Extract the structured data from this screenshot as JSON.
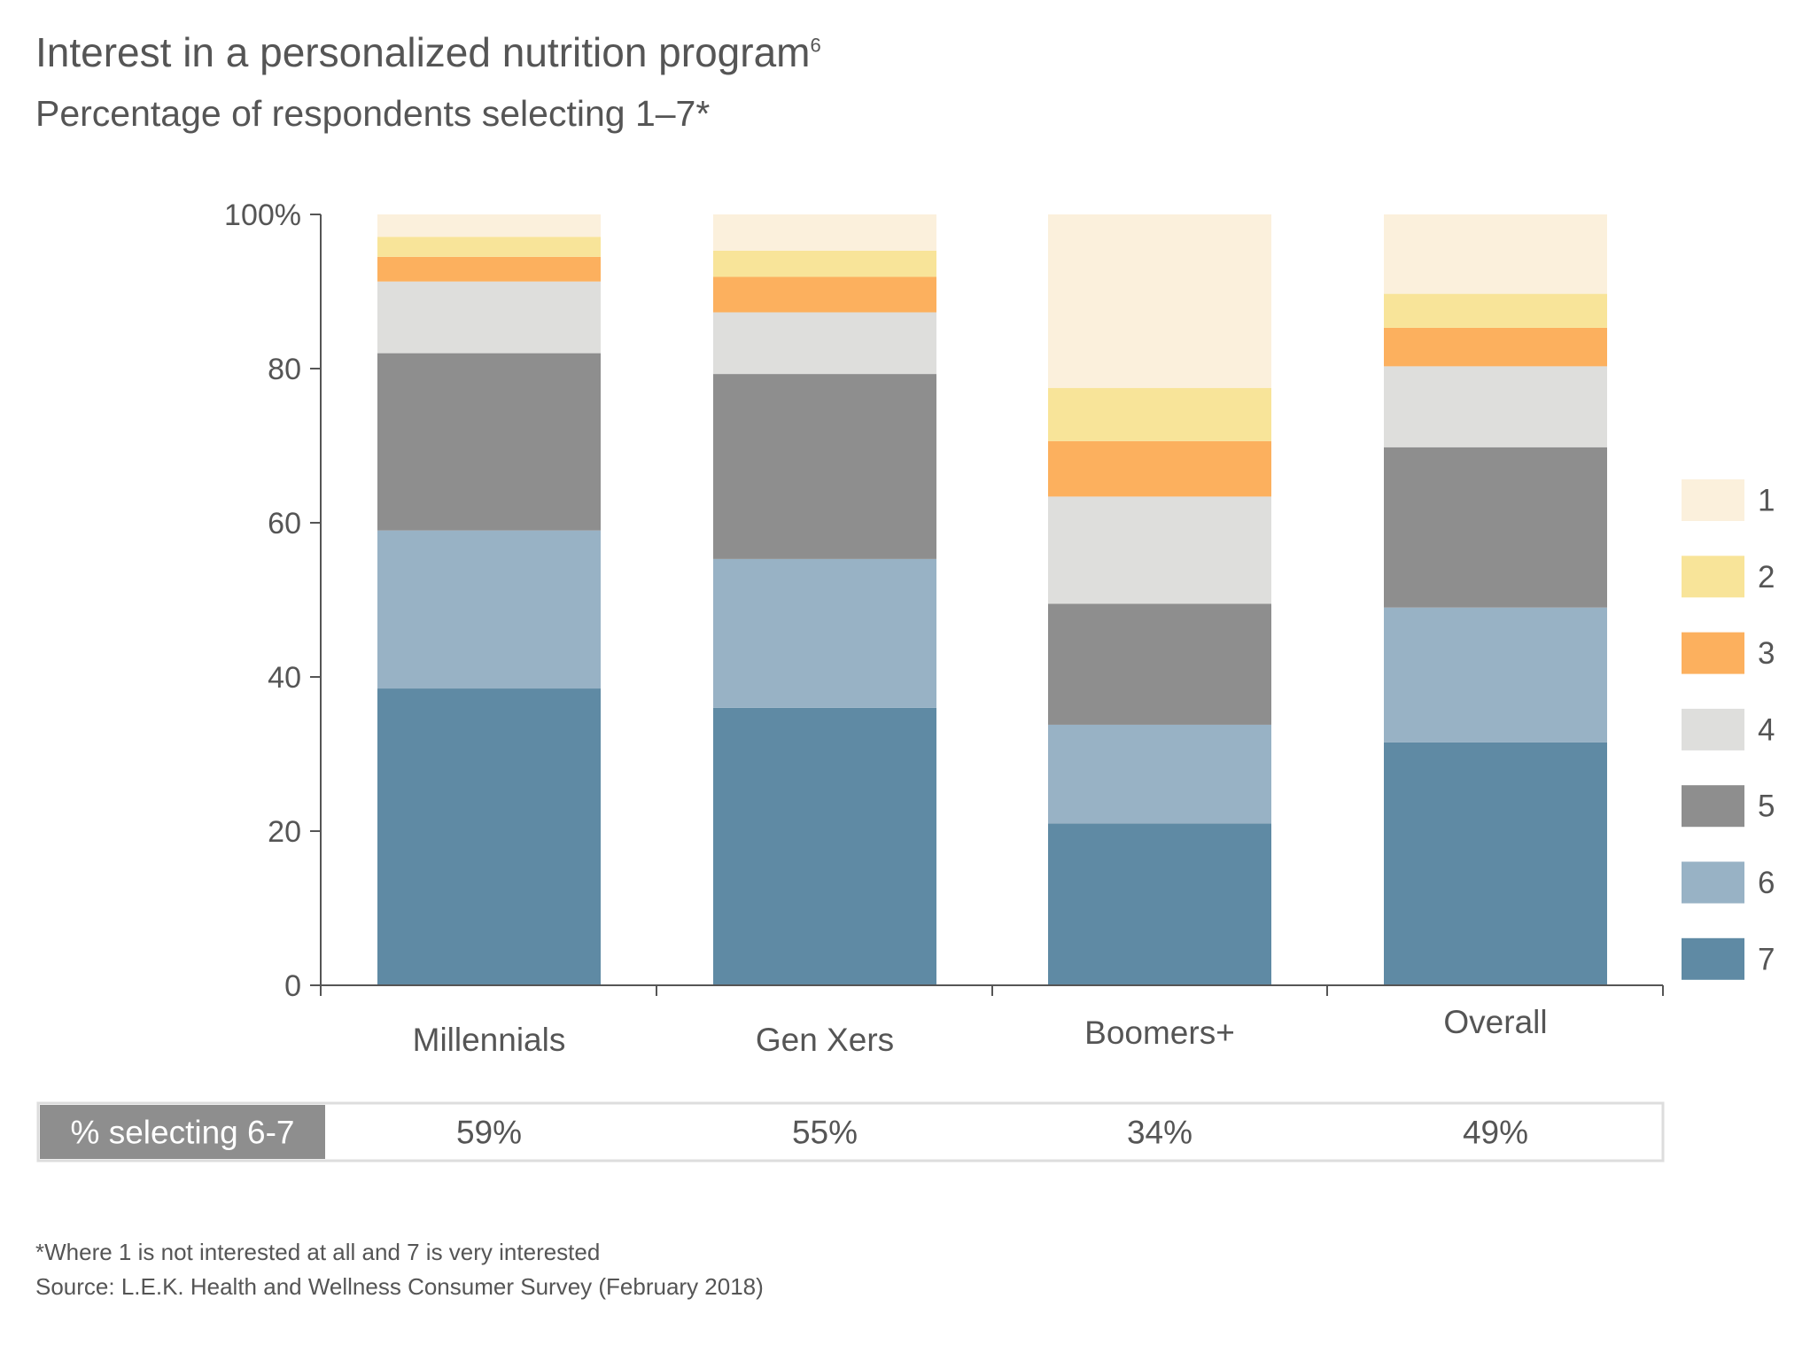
{
  "title": "Interest in a personalized nutrition program",
  "title_superscript": "6",
  "subtitle": "Percentage of respondents selecting 1–7*",
  "footnote": "*Where 1 is not interested at all and 7 is very interested",
  "source": "Source: L.E.K. Health and Wellness Consumer Survey (February 2018)",
  "chart_data": {
    "type": "bar",
    "stacked": true,
    "categories": [
      "Millennials",
      "Gen Xers",
      "Boomers+",
      "Overall"
    ],
    "y_tick_labels": [
      "0",
      "20",
      "40",
      "60",
      "80",
      "100%"
    ],
    "ylim": [
      0,
      100
    ],
    "grid": false,
    "legend_position": "right",
    "series": [
      {
        "name": "7",
        "color": "#5f8aa4",
        "values": [
          38.5,
          36.0,
          21.0,
          31.5
        ]
      },
      {
        "name": "6",
        "color": "#98b2c5",
        "values": [
          20.5,
          19.3,
          12.8,
          17.5
        ]
      },
      {
        "name": "5",
        "color": "#8e8e8e",
        "values": [
          23.0,
          24.0,
          15.7,
          20.8
        ]
      },
      {
        "name": "4",
        "color": "#dededc",
        "values": [
          9.3,
          8.0,
          13.9,
          10.5
        ]
      },
      {
        "name": "3",
        "color": "#fcb05e",
        "values": [
          3.2,
          4.6,
          7.2,
          5.0
        ]
      },
      {
        "name": "2",
        "color": "#f8e499",
        "values": [
          2.6,
          3.4,
          6.9,
          4.4
        ]
      },
      {
        "name": "1",
        "color": "#fbf0dc",
        "values": [
          2.9,
          4.7,
          22.5,
          10.3
        ]
      }
    ],
    "summary_row": {
      "label": "% selecting 6-7",
      "values": [
        "59%",
        "55%",
        "34%",
        "49%"
      ]
    }
  }
}
